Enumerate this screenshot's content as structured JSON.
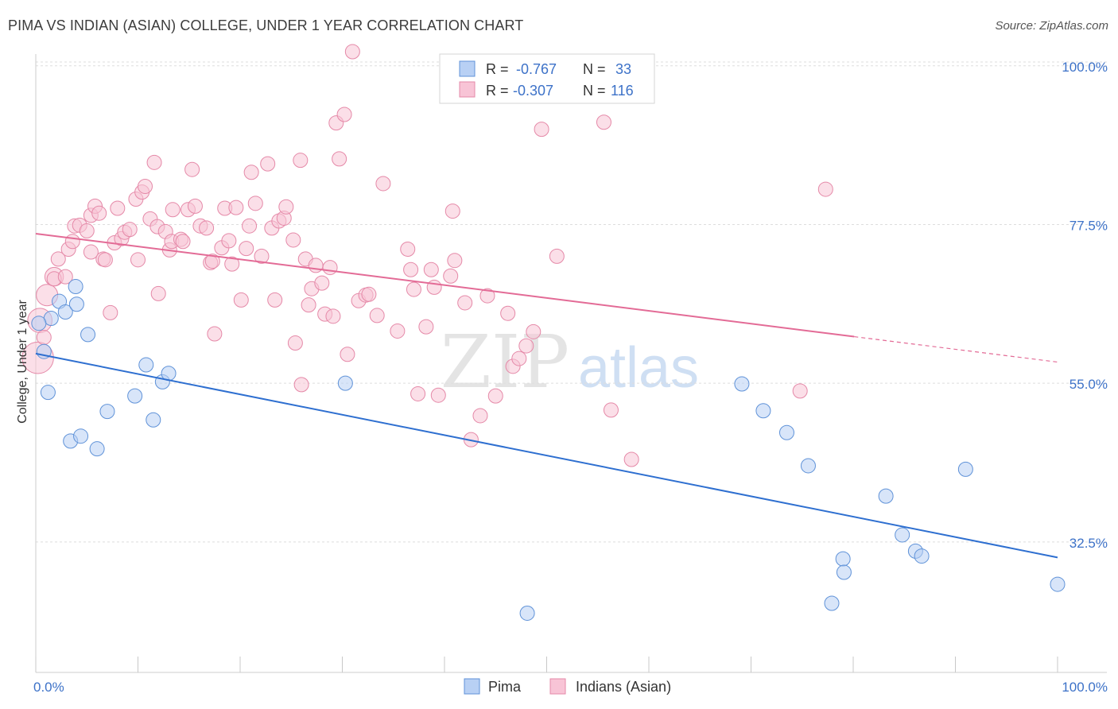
{
  "title": "PIMA VS INDIAN (ASIAN) COLLEGE, UNDER 1 YEAR CORRELATION CHART",
  "source": "Source: ZipAtlas.com",
  "watermark": {
    "zip": "ZIP",
    "atlas": "atlas"
  },
  "colors": {
    "pima_fill": "#b8d0f4",
    "pima_stroke": "#5f92d8",
    "pima_line": "#2e6fd0",
    "indian_fill": "#f8c4d6",
    "indian_stroke": "#e589a8",
    "indian_line": "#e36b96",
    "axis_label": "#3d72c8",
    "grid": "#dddddd"
  },
  "legend_top": [
    {
      "series": "pima",
      "r_label": "R =",
      "r_value": "-0.767",
      "n_label": "N =",
      "n_value": "33"
    },
    {
      "series": "indian",
      "r_label": "R =",
      "r_value": "-0.307",
      "n_label": "N =",
      "n_value": "116"
    }
  ],
  "legend_bottom": [
    {
      "series": "pima",
      "label": "Pima"
    },
    {
      "series": "indian",
      "label": "Indians (Asian)"
    }
  ],
  "chart_data": {
    "type": "scatter",
    "title": "PIMA VS INDIAN (ASIAN) COLLEGE, UNDER 1 YEAR CORRELATION CHART",
    "xlabel": "",
    "ylabel": "College, Under 1 year",
    "xlim": [
      0,
      100
    ],
    "ylim": [
      14,
      102
    ],
    "x_tick_labels": [
      {
        "value": 0,
        "label": "0.0%"
      },
      {
        "value": 100,
        "label": "100.0%"
      }
    ],
    "y_tick_labels": [
      {
        "value": 100,
        "label": "100.0%"
      },
      {
        "value": 77.5,
        "label": "77.5%"
      },
      {
        "value": 55,
        "label": "55.0%"
      },
      {
        "value": 32.5,
        "label": "32.5%"
      }
    ],
    "grid": true,
    "legend_position": "top-center",
    "series": [
      {
        "name": "Pima",
        "key": "pima",
        "trend": {
          "x": [
            0,
            100
          ],
          "y": [
            59.2,
            30.3
          ]
        },
        "points": [
          [
            0.8,
            59.5,
            1
          ],
          [
            1.2,
            53.7,
            1
          ],
          [
            1.5,
            64.2,
            1
          ],
          [
            2.3,
            66.6,
            1
          ],
          [
            2.9,
            65.1,
            1
          ],
          [
            3.4,
            46.8,
            1
          ],
          [
            4.4,
            47.5,
            1
          ],
          [
            3.9,
            68.7,
            1
          ],
          [
            4.0,
            66.2,
            1
          ],
          [
            5.1,
            61.9,
            1
          ],
          [
            6.0,
            45.7,
            1
          ],
          [
            7.0,
            51.0,
            1
          ],
          [
            9.7,
            53.2,
            1
          ],
          [
            10.8,
            57.6,
            1
          ],
          [
            11.5,
            49.8,
            1
          ],
          [
            12.4,
            55.2,
            1
          ],
          [
            13.0,
            56.4,
            1
          ],
          [
            30.3,
            55.0,
            1
          ],
          [
            48.1,
            22.4,
            1
          ],
          [
            69.1,
            54.9,
            1
          ],
          [
            71.2,
            51.1,
            1
          ],
          [
            73.5,
            48.0,
            1
          ],
          [
            75.6,
            43.3,
            1
          ],
          [
            77.9,
            23.8,
            1
          ],
          [
            79.0,
            30.1,
            1
          ],
          [
            79.1,
            28.2,
            1
          ],
          [
            83.2,
            39.0,
            1
          ],
          [
            84.8,
            33.5,
            1
          ],
          [
            86.1,
            31.2,
            1
          ],
          [
            86.7,
            30.5,
            1
          ],
          [
            91.0,
            42.8,
            1
          ],
          [
            100.0,
            26.5,
            1
          ],
          [
            0.3,
            63.5,
            1
          ]
        ]
      },
      {
        "name": "Indians (Asian)",
        "key": "indian",
        "trend": {
          "x": [
            0,
            80.1,
            100
          ],
          "y": [
            76.2,
            61.6,
            58.0
          ],
          "solid_until": 80.1
        },
        "points": [
          [
            0.2,
            58.6,
            2.2
          ],
          [
            0.4,
            63.9,
            1.7
          ],
          [
            1.1,
            67.5,
            1.5
          ],
          [
            1.8,
            70.1,
            1.3
          ],
          [
            2.2,
            72.6,
            1
          ],
          [
            1.8,
            69.8,
            1
          ],
          [
            2.9,
            70.1,
            1
          ],
          [
            3.2,
            74.0,
            1
          ],
          [
            3.6,
            75.1,
            1
          ],
          [
            3.8,
            77.3,
            1
          ],
          [
            4.3,
            77.4,
            1
          ],
          [
            5.0,
            76.6,
            1
          ],
          [
            5.4,
            78.8,
            1
          ],
          [
            5.4,
            73.6,
            1
          ],
          [
            5.8,
            80.1,
            1
          ],
          [
            6.2,
            79.1,
            1
          ],
          [
            6.6,
            72.6,
            1
          ],
          [
            6.8,
            72.5,
            1
          ],
          [
            7.3,
            65.0,
            1
          ],
          [
            7.7,
            74.9,
            1
          ],
          [
            8.0,
            79.8,
            1
          ],
          [
            8.4,
            75.5,
            1
          ],
          [
            8.7,
            76.4,
            1
          ],
          [
            9.2,
            76.8,
            1
          ],
          [
            9.8,
            81.1,
            1
          ],
          [
            10.0,
            72.5,
            1
          ],
          [
            10.4,
            82.1,
            1
          ],
          [
            10.7,
            82.9,
            1
          ],
          [
            11.2,
            78.3,
            1
          ],
          [
            11.6,
            86.3,
            1
          ],
          [
            11.9,
            77.2,
            1
          ],
          [
            12.0,
            67.7,
            1
          ],
          [
            12.7,
            76.5,
            1
          ],
          [
            13.1,
            73.9,
            1
          ],
          [
            13.3,
            75.1,
            1
          ],
          [
            13.4,
            79.6,
            1
          ],
          [
            14.2,
            75.4,
            1
          ],
          [
            14.4,
            75.1,
            1
          ],
          [
            14.9,
            79.6,
            1
          ],
          [
            15.3,
            85.3,
            1
          ],
          [
            15.6,
            80.1,
            1
          ],
          [
            16.1,
            77.3,
            1
          ],
          [
            16.7,
            77.0,
            1
          ],
          [
            17.1,
            72.1,
            1
          ],
          [
            17.3,
            72.3,
            1
          ],
          [
            17.5,
            62.0,
            1
          ],
          [
            18.2,
            74.2,
            1
          ],
          [
            18.5,
            79.8,
            1
          ],
          [
            18.9,
            75.2,
            1
          ],
          [
            19.2,
            71.9,
            1
          ],
          [
            19.6,
            79.9,
            1
          ],
          [
            20.1,
            66.8,
            1
          ],
          [
            20.6,
            74.1,
            1
          ],
          [
            20.9,
            77.3,
            1
          ],
          [
            21.1,
            84.9,
            1
          ],
          [
            21.5,
            80.5,
            1
          ],
          [
            22.1,
            73.0,
            1
          ],
          [
            22.7,
            86.1,
            1
          ],
          [
            23.1,
            77.0,
            1
          ],
          [
            23.4,
            66.8,
            1
          ],
          [
            23.8,
            78.0,
            1
          ],
          [
            24.3,
            78.4,
            1
          ],
          [
            24.5,
            80.0,
            1
          ],
          [
            25.2,
            75.3,
            1
          ],
          [
            25.4,
            60.7,
            1
          ],
          [
            25.9,
            86.6,
            1
          ],
          [
            26.0,
            54.8,
            1
          ],
          [
            26.4,
            72.6,
            1
          ],
          [
            26.7,
            66.1,
            1
          ],
          [
            27.0,
            68.4,
            1
          ],
          [
            27.4,
            71.7,
            1
          ],
          [
            28.0,
            69.2,
            1
          ],
          [
            28.3,
            64.8,
            1
          ],
          [
            28.8,
            71.4,
            1
          ],
          [
            29.1,
            64.5,
            1
          ],
          [
            29.4,
            91.9,
            1
          ],
          [
            29.7,
            86.8,
            1
          ],
          [
            30.2,
            93.1,
            1
          ],
          [
            30.5,
            59.1,
            1
          ],
          [
            31.0,
            102.0,
            1
          ],
          [
            31.6,
            66.7,
            1
          ],
          [
            32.3,
            67.5,
            1
          ],
          [
            32.6,
            67.6,
            1
          ],
          [
            33.4,
            64.6,
            1
          ],
          [
            34.0,
            83.3,
            1
          ],
          [
            35.4,
            62.4,
            1
          ],
          [
            36.4,
            74.0,
            1
          ],
          [
            36.7,
            71.1,
            1
          ],
          [
            37.0,
            68.3,
            1
          ],
          [
            37.4,
            53.5,
            1
          ],
          [
            38.2,
            63.0,
            1
          ],
          [
            38.7,
            71.1,
            1
          ],
          [
            39.0,
            68.6,
            1
          ],
          [
            39.4,
            53.3,
            1
          ],
          [
            40.6,
            70.2,
            1
          ],
          [
            40.8,
            79.4,
            1
          ],
          [
            41.0,
            72.4,
            1
          ],
          [
            42.0,
            66.4,
            1
          ],
          [
            42.6,
            47.0,
            1
          ],
          [
            43.5,
            50.4,
            1
          ],
          [
            44.2,
            67.4,
            1
          ],
          [
            45.0,
            53.2,
            1
          ],
          [
            45.6,
            98.0,
            1
          ],
          [
            46.2,
            64.9,
            1
          ],
          [
            46.7,
            57.4,
            1
          ],
          [
            47.3,
            58.5,
            1
          ],
          [
            48.0,
            60.3,
            1
          ],
          [
            48.7,
            62.3,
            1
          ],
          [
            49.5,
            91.0,
            1
          ],
          [
            51.0,
            73.0,
            1
          ],
          [
            55.6,
            92.0,
            1
          ],
          [
            56.3,
            51.2,
            1
          ],
          [
            58.3,
            44.2,
            1
          ],
          [
            74.8,
            53.9,
            1
          ],
          [
            77.3,
            82.5,
            1
          ],
          [
            0.8,
            61.5,
            1
          ]
        ]
      }
    ]
  }
}
